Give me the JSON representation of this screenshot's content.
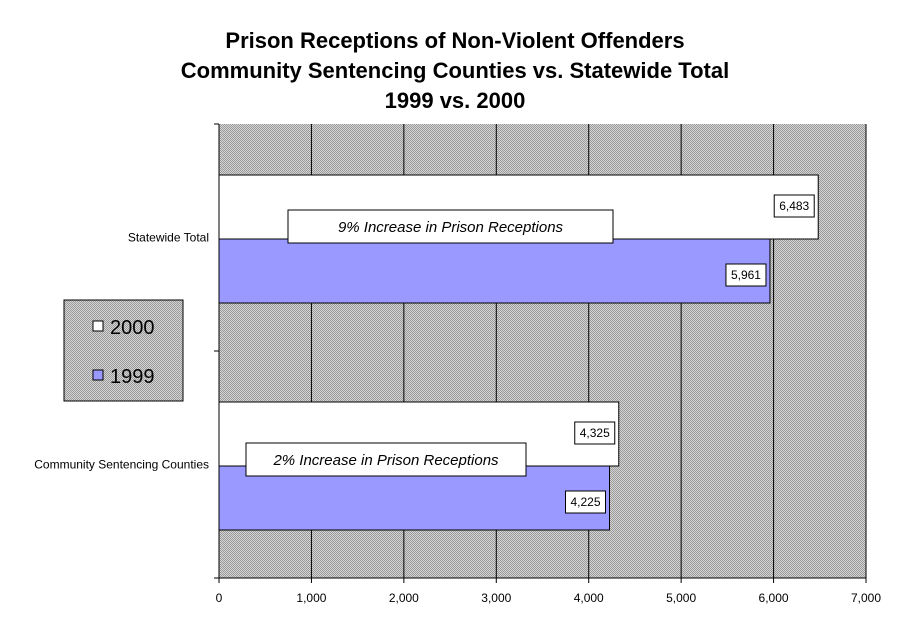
{
  "chart_data": {
    "type": "bar",
    "orientation": "horizontal",
    "title_lines": [
      "Prison Receptions of Non-Violent Offenders",
      "Community Sentencing Counties vs. Statewide Total",
      "1999 vs. 2000"
    ],
    "categories": [
      "Statewide Total",
      "Community Sentencing Counties"
    ],
    "series": [
      {
        "name": "2000",
        "values": [
          6483,
          4325
        ],
        "labels": [
          "6,483",
          "4,325"
        ],
        "color": "#ffffff"
      },
      {
        "name": "1999",
        "values": [
          5961,
          4225
        ],
        "labels": [
          "5,961",
          "4,225"
        ],
        "color": "#9999ff"
      }
    ],
    "xlim": [
      0,
      7000
    ],
    "x_ticks": [
      0,
      1000,
      2000,
      3000,
      4000,
      5000,
      6000,
      7000
    ],
    "x_tick_labels": [
      "0",
      "1,000",
      "2,000",
      "3,000",
      "4,000",
      "5,000",
      "6,000",
      "7,000"
    ],
    "annotations": [
      "9% Increase in Prison Receptions",
      "2% Increase in Prison Receptions"
    ],
    "legend_position": "left",
    "grid": true,
    "plot_background": "#c0c0c0"
  }
}
